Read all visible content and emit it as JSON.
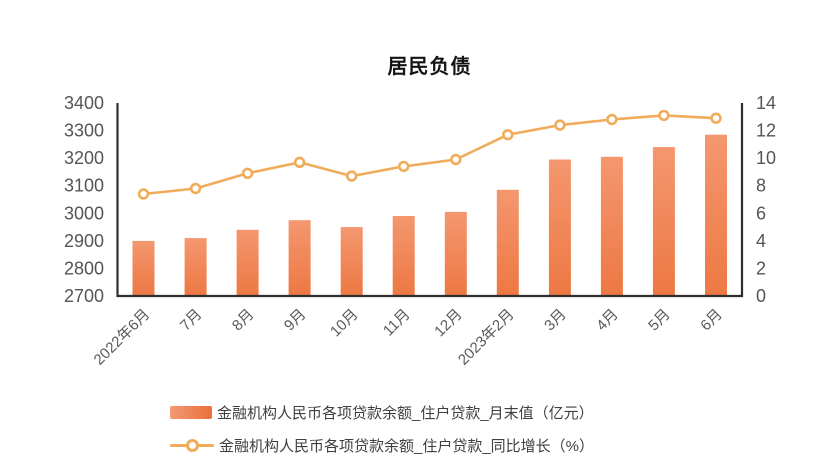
{
  "title": "居民负债",
  "chart_data": {
    "type": "combo",
    "title": "居民负债",
    "categories": [
      "2022年6月",
      "7月",
      "8月",
      "9月",
      "10月",
      "11月",
      "12月",
      "2023年2月",
      "3月",
      "4月",
      "5月",
      "6月"
    ],
    "series": [
      {
        "name": "金融机构人民币各项贷款余额_住户贷款_月末值（亿元）",
        "type": "bar",
        "axis": "left",
        "values": [
          2900,
          2910,
          2940,
          2975,
          2950,
          2990,
          3005,
          3085,
          3195,
          3205,
          3240,
          3285
        ]
      },
      {
        "name": "金融机构人民币各项贷款余额_住户贷款_同比增长（%）",
        "type": "line",
        "axis": "right",
        "values": [
          7.4,
          7.8,
          8.9,
          9.7,
          8.7,
          9.4,
          9.9,
          11.7,
          12.4,
          12.8,
          13.1,
          12.9
        ]
      }
    ],
    "left_axis": {
      "min": 2700,
      "max": 3400,
      "step": 100,
      "tick_labels": [
        "3400",
        "3300",
        "3200",
        "3100",
        "3000",
        "2900",
        "2800",
        "2700"
      ]
    },
    "right_axis": {
      "min": 0,
      "max": 14,
      "step": 2,
      "tick_labels": [
        "14",
        "12",
        "10",
        "8",
        "6",
        "4",
        "2",
        "0"
      ]
    },
    "grid": false,
    "legend_position": "bottom",
    "colors": {
      "bar_top": "#F4976F",
      "bar_bottom": "#ED7843",
      "line": "#F0AC5A",
      "marker_fill": "#FFFFFF",
      "axis_line": "#2E2E2E",
      "tick_text": "#555555",
      "x_label_text": "#595959",
      "title_text": "#141414",
      "legend_text": "#3F3F3F"
    }
  },
  "legend": {
    "items": [
      {
        "label": "金融机构人民币各项贷款余额_住户贷款_月末值（亿元）",
        "marker": "bar-swatch"
      },
      {
        "label": "金融机构人民币各项贷款余额_住户贷款_同比增长（%）",
        "marker": "line-marker-swatch"
      }
    ]
  }
}
